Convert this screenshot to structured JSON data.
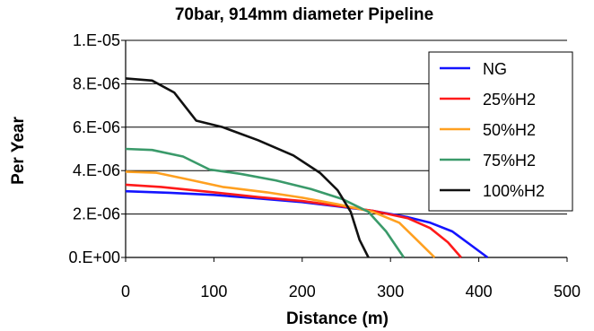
{
  "chart_data": {
    "type": "line",
    "title": "70bar, 914mm diameter Pipeline",
    "xlabel": "Distance (m)",
    "ylabel": "Per Year",
    "xlim": [
      0,
      500
    ],
    "ylim": [
      0,
      1e-05
    ],
    "x_ticks": [
      "0",
      "100",
      "200",
      "300",
      "400",
      "500"
    ],
    "y_ticks": [
      "0.E+00",
      "2.E-06",
      "4.E-06",
      "6.E-06",
      "8.E-06",
      "1.E-05"
    ],
    "grid": "horizontal",
    "legend_position": "top-right",
    "series": [
      {
        "name": "NG",
        "color": "#1414ff",
        "points": [
          [
            0,
            3.05e-06
          ],
          [
            50,
            2.98e-06
          ],
          [
            100,
            2.88e-06
          ],
          [
            150,
            2.72e-06
          ],
          [
            200,
            2.55e-06
          ],
          [
            240,
            2.35e-06
          ],
          [
            280,
            2.15e-06
          ],
          [
            320,
            1.85e-06
          ],
          [
            345,
            1.6e-06
          ],
          [
            370,
            1.2e-06
          ],
          [
            390,
            6e-07
          ],
          [
            410,
            0
          ]
        ]
      },
      {
        "name": "25%H2",
        "color": "#ff1a1a",
        "points": [
          [
            0,
            3.35e-06
          ],
          [
            40,
            3.25e-06
          ],
          [
            100,
            3e-06
          ],
          [
            150,
            2.78e-06
          ],
          [
            200,
            2.6e-06
          ],
          [
            240,
            2.38e-06
          ],
          [
            280,
            2.15e-06
          ],
          [
            320,
            1.8e-06
          ],
          [
            345,
            1.35e-06
          ],
          [
            365,
            7e-07
          ],
          [
            380,
            0
          ]
        ]
      },
      {
        "name": "50%H2",
        "color": "#ffa020",
        "points": [
          [
            0,
            3.95e-06
          ],
          [
            35,
            3.9e-06
          ],
          [
            70,
            3.6e-06
          ],
          [
            110,
            3.25e-06
          ],
          [
            160,
            3e-06
          ],
          [
            200,
            2.75e-06
          ],
          [
            240,
            2.45e-06
          ],
          [
            280,
            2.1e-06
          ],
          [
            310,
            1.6e-06
          ],
          [
            330,
            8e-07
          ],
          [
            350,
            0
          ]
        ]
      },
      {
        "name": "75%H2",
        "color": "#3a9a6a",
        "points": [
          [
            0,
            5e-06
          ],
          [
            30,
            4.95e-06
          ],
          [
            65,
            4.65e-06
          ],
          [
            95,
            4.05e-06
          ],
          [
            130,
            3.85e-06
          ],
          [
            170,
            3.55e-06
          ],
          [
            210,
            3.15e-06
          ],
          [
            245,
            2.7e-06
          ],
          [
            275,
            2.1e-06
          ],
          [
            295,
            1.2e-06
          ],
          [
            315,
            0
          ]
        ]
      },
      {
        "name": "100%H2",
        "color": "#111111",
        "points": [
          [
            0,
            8.25e-06
          ],
          [
            30,
            8.15e-06
          ],
          [
            55,
            7.6e-06
          ],
          [
            80,
            6.3e-06
          ],
          [
            110,
            6e-06
          ],
          [
            150,
            5.4e-06
          ],
          [
            190,
            4.7e-06
          ],
          [
            220,
            3.9e-06
          ],
          [
            240,
            3.1e-06
          ],
          [
            255,
            2.1e-06
          ],
          [
            265,
            8e-07
          ],
          [
            275,
            0
          ]
        ]
      }
    ]
  }
}
